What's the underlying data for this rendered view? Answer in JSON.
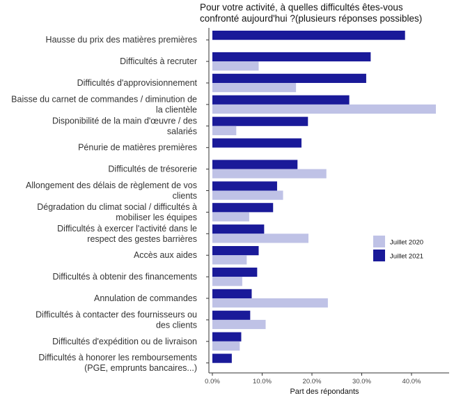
{
  "chart_data": {
    "type": "bar",
    "orientation": "horizontal",
    "title": "Pour votre activité, à quelles difficultés êtes-vous confronté aujourd'hui ?(plusieurs réponses possibles)",
    "title_lines": [
      "Pour votre activité, à quelles difficultés êtes-vous",
      "confronté aujourd'hui ?(plusieurs réponses possibles)"
    ],
    "xlabel": "Part des répondants",
    "ylabel": "",
    "xlim": [
      0,
      0.47
    ],
    "x_ticks": [
      0,
      0.1,
      0.2,
      0.3,
      0.4
    ],
    "x_tick_labels": [
      "0.0%",
      "10.0%",
      "20.0%",
      "30.0%",
      "40.0%"
    ],
    "grid": false,
    "legend_position": "right",
    "categories": [
      [
        "Hausse du prix des matières premières"
      ],
      [
        "Difficultés à recruter"
      ],
      [
        "Difficultés d'approvisionnement"
      ],
      [
        "Baisse du carnet de commandes / diminution de",
        "la clientèle"
      ],
      [
        "Disponibilité de la main d'œuvre / des",
        "salariés"
      ],
      [
        "Pénurie de matières premières"
      ],
      [
        "Difficultés de trésorerie"
      ],
      [
        "Allongement des délais de règlement de vos",
        "clients"
      ],
      [
        "Dégradation du climat social / difficultés à",
        "mobiliser les équipes"
      ],
      [
        "Difficultés à exercer l'activité dans le",
        "respect des gestes barrières"
      ],
      [
        "Accès aux aides"
      ],
      [
        "Difficultés à obtenir des financements"
      ],
      [
        "Annulation de commandes"
      ],
      [
        "Difficultés à contacter des fournisseurs ou",
        "des clients"
      ],
      [
        "Difficultés d'expédition ou de livraison"
      ],
      [
        "Difficultés à honorer les remboursements",
        "(PGE, emprunts bancaires...)"
      ]
    ],
    "series": [
      {
        "name": "Juillet 2021",
        "color": "#1a1a99",
        "values": [
          0.387,
          0.318,
          0.309,
          0.275,
          0.192,
          0.179,
          0.171,
          0.13,
          0.122,
          0.104,
          0.093,
          0.09,
          0.079,
          0.076,
          0.058,
          0.039
        ]
      },
      {
        "name": "Juillet 2020",
        "color": "#bfc2e6",
        "values": [
          null,
          0.093,
          0.168,
          0.449,
          0.048,
          null,
          0.229,
          0.142,
          0.074,
          0.193,
          0.069,
          0.06,
          0.232,
          0.107,
          0.055,
          null
        ]
      }
    ],
    "legend": [
      {
        "label": "Juillet 2020",
        "color": "#bfc2e6"
      },
      {
        "label": "Juillet 2021",
        "color": "#1a1a99"
      }
    ]
  }
}
